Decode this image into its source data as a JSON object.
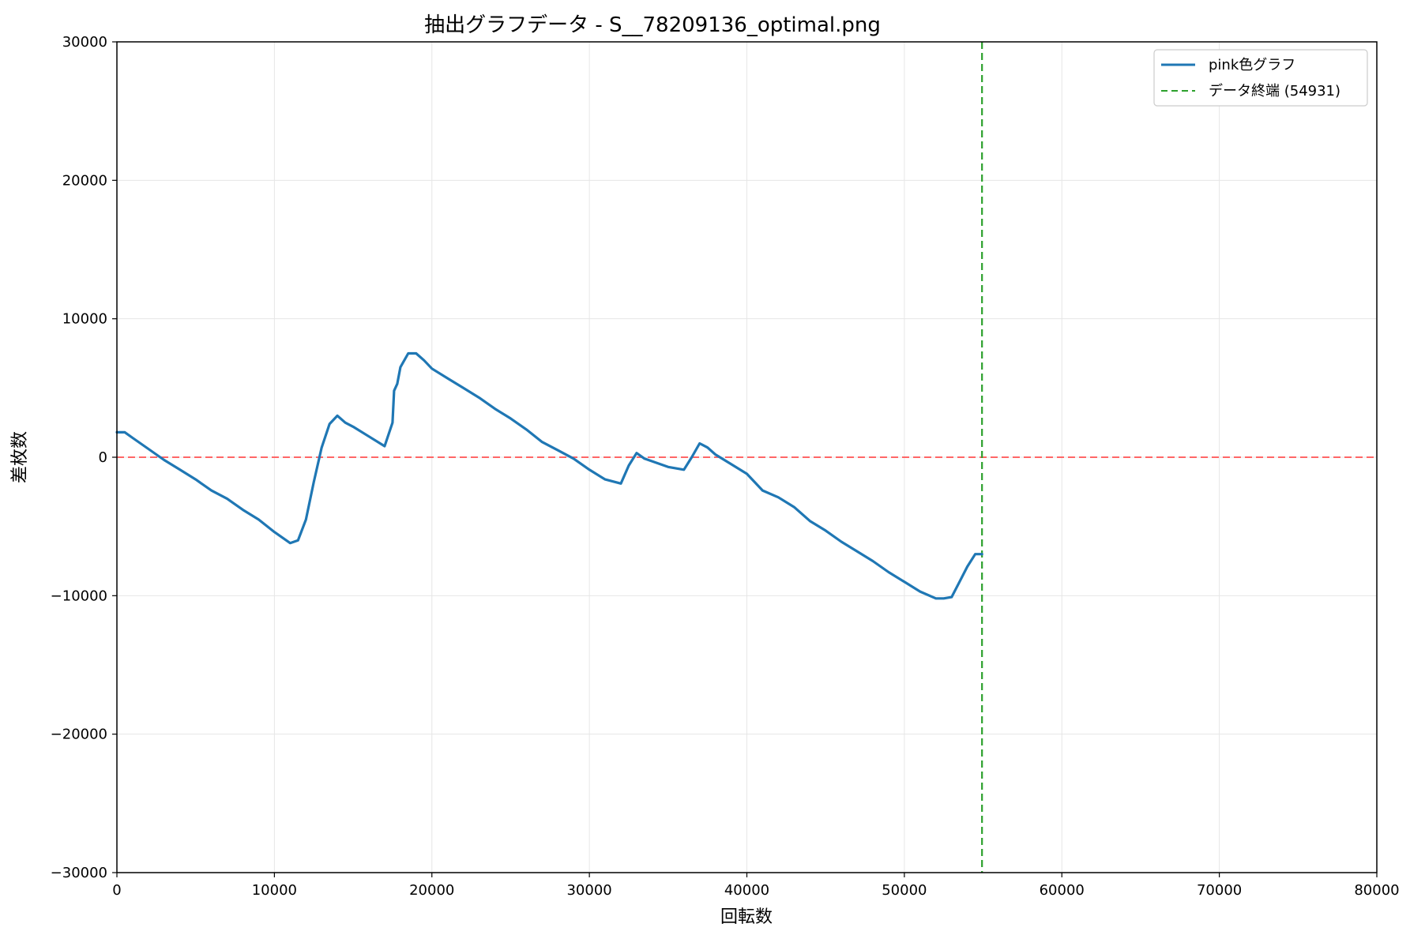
{
  "chart_data": {
    "type": "line",
    "title": "抽出グラフデータ - S__78209136_optimal.png",
    "xlabel": "回転数",
    "ylabel": "差枚数",
    "xlim": [
      0,
      80000
    ],
    "ylim": [
      -30000,
      30000
    ],
    "x_ticks": [
      0,
      10000,
      20000,
      30000,
      40000,
      50000,
      60000,
      70000,
      80000
    ],
    "y_ticks": [
      -30000,
      -20000,
      -10000,
      0,
      10000,
      20000,
      30000
    ],
    "x_tick_labels": [
      "0",
      "10000",
      "20000",
      "30000",
      "40000",
      "50000",
      "60000",
      "70000",
      "80000"
    ],
    "y_tick_labels": [
      "−30000",
      "−20000",
      "−10000",
      "0",
      "10000",
      "20000",
      "30000"
    ],
    "grid": true,
    "legend_position": "top-right",
    "series": [
      {
        "name": "pink色グラフ",
        "color": "#1f77b4",
        "style": "solid",
        "x": [
          0,
          500,
          1000,
          2000,
          3000,
          4000,
          5000,
          6000,
          7000,
          8000,
          9000,
          10000,
          11000,
          11500,
          12000,
          12500,
          13000,
          13500,
          14000,
          14500,
          15000,
          16000,
          17000,
          17500,
          17600,
          17800,
          18000,
          18500,
          19000,
          19500,
          20000,
          21000,
          22000,
          23000,
          24000,
          25000,
          26000,
          27000,
          28000,
          29000,
          30000,
          31000,
          32000,
          32500,
          33000,
          33500,
          34000,
          35000,
          36000,
          36500,
          37000,
          37500,
          38000,
          39000,
          40000,
          41000,
          42000,
          43000,
          44000,
          45000,
          46000,
          47000,
          48000,
          49000,
          50000,
          51000,
          52000,
          52500,
          53000,
          53500,
          54000,
          54500,
          54931
        ],
        "y": [
          1800,
          1800,
          1400,
          600,
          -200,
          -900,
          -1600,
          -2400,
          -3000,
          -3800,
          -4500,
          -5400,
          -6200,
          -6000,
          -4500,
          -1800,
          700,
          2400,
          3000,
          2500,
          2200,
          1500,
          800,
          2500,
          4800,
          5300,
          6500,
          7500,
          7500,
          7000,
          6400,
          5700,
          5000,
          4300,
          3500,
          2800,
          2000,
          1100,
          500,
          -100,
          -900,
          -1600,
          -1900,
          -600,
          300,
          -100,
          -300,
          -700,
          -900,
          0,
          1000,
          700,
          200,
          -500,
          -1200,
          -2400,
          -2900,
          -3600,
          -4600,
          -5300,
          -6100,
          -6800,
          -7500,
          -8300,
          -9000,
          -9700,
          -10200,
          -10200,
          -10100,
          -9000,
          -7900,
          -7000,
          -7000
        ]
      }
    ],
    "reference_lines": [
      {
        "orientation": "horizontal",
        "value": 0,
        "color": "#ff6666",
        "style": "dashed"
      },
      {
        "orientation": "vertical",
        "value": 54931,
        "color": "#2ca02c",
        "style": "dashed",
        "name": "データ終端 (54931)"
      }
    ]
  }
}
